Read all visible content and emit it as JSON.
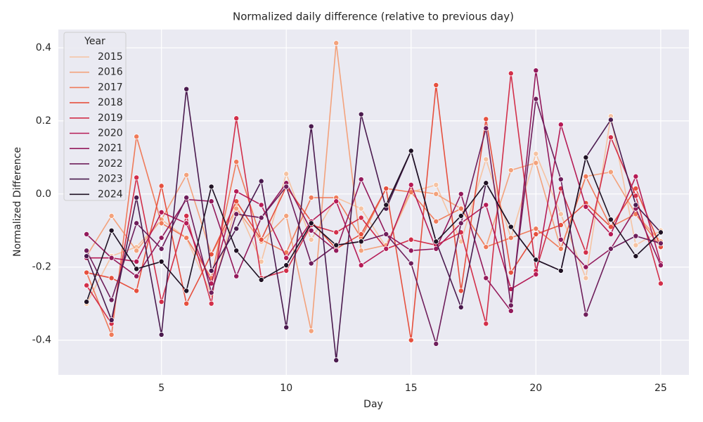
{
  "chart_data": {
    "type": "line",
    "title": "Normalized daily difference (relative to previous day)",
    "xlabel": "Day",
    "ylabel": "Normalized Difference",
    "legend_title": "Year",
    "legend": "upper left",
    "grid": true,
    "x": [
      2,
      3,
      4,
      5,
      6,
      7,
      8,
      9,
      10,
      11,
      12,
      13,
      14,
      15,
      16,
      17,
      18,
      19,
      20,
      21,
      22,
      23,
      24,
      25
    ],
    "xlim": [
      0.87,
      26.13
    ],
    "xticks": [
      5,
      10,
      15,
      20,
      25
    ],
    "ylim": [
      -0.495,
      0.45
    ],
    "yticks": [
      -0.4,
      -0.2,
      {
        "value": 0,
        "label": "0.0"
      },
      0.2,
      0.4
    ],
    "series": [
      {
        "name": "2015",
        "color": "#f6c3a2",
        "values": [
          -0.3,
          -0.17,
          -0.145,
          -0.07,
          -0.12,
          -0.275,
          -0.03,
          -0.185,
          0.055,
          -0.125,
          -0.01,
          -0.04,
          -0.145,
          0.005,
          0.025,
          -0.13,
          0.095,
          -0.12,
          0.11,
          -0.055,
          -0.23,
          0.213,
          -0.14,
          -0.1
        ]
      },
      {
        "name": "2016",
        "color": "#f3a27c",
        "values": [
          -0.17,
          -0.06,
          -0.155,
          -0.07,
          0.052,
          -0.165,
          -0.04,
          -0.13,
          -0.06,
          -0.375,
          0.413,
          -0.155,
          -0.14,
          0.01,
          0.0,
          -0.04,
          -0.145,
          0.065,
          0.085,
          -0.15,
          0.048,
          0.06,
          -0.055,
          -0.13
        ]
      },
      {
        "name": "2017",
        "color": "#ef7b5a",
        "values": [
          -0.215,
          -0.385,
          0.157,
          -0.08,
          -0.12,
          -0.23,
          0.088,
          -0.125,
          -0.16,
          -0.01,
          -0.01,
          -0.12,
          0.015,
          0.005,
          -0.075,
          -0.04,
          -0.145,
          -0.12,
          -0.095,
          -0.15,
          0.048,
          -0.09,
          -0.055,
          -0.145
        ]
      },
      {
        "name": "2018",
        "color": "#e6503e",
        "values": [
          -0.215,
          -0.23,
          -0.265,
          0.022,
          -0.3,
          -0.165,
          -0.02,
          -0.125,
          0.02,
          -0.075,
          -0.15,
          -0.11,
          0.015,
          -0.4,
          0.298,
          -0.265,
          0.205,
          -0.215,
          -0.11,
          -0.085,
          -0.025,
          -0.09,
          0.015,
          -0.145
        ]
      },
      {
        "name": "2019",
        "color": "#d22f4a",
        "values": [
          -0.25,
          -0.355,
          0.045,
          -0.295,
          -0.06,
          -0.3,
          0.207,
          -0.23,
          -0.21,
          -0.085,
          -0.105,
          -0.065,
          -0.15,
          -0.125,
          -0.14,
          -0.105,
          -0.355,
          0.33,
          -0.21,
          0.015,
          -0.16,
          0.155,
          -0.005,
          -0.245
        ]
      },
      {
        "name": "2020",
        "color": "#b51b56",
        "values": [
          -0.175,
          -0.175,
          -0.185,
          -0.05,
          -0.08,
          -0.245,
          0.007,
          -0.03,
          -0.175,
          -0.075,
          -0.02,
          -0.195,
          -0.15,
          0.025,
          -0.15,
          -0.08,
          -0.03,
          -0.26,
          -0.22,
          0.19,
          -0.035,
          -0.11,
          0.048,
          -0.19
        ]
      },
      {
        "name": "2021",
        "color": "#931a5c",
        "values": [
          -0.11,
          -0.175,
          -0.225,
          -0.12,
          -0.015,
          -0.02,
          -0.225,
          -0.065,
          0.03,
          -0.1,
          -0.155,
          0.04,
          -0.11,
          -0.155,
          -0.15,
          0.0,
          -0.23,
          -0.32,
          0.338,
          -0.125,
          -0.2,
          -0.15,
          -0.04,
          -0.195
        ]
      },
      {
        "name": "2022",
        "color": "#6e1e5b",
        "values": [
          -0.155,
          -0.29,
          -0.08,
          -0.15,
          -0.01,
          -0.27,
          -0.055,
          -0.065,
          0.02,
          -0.19,
          -0.14,
          -0.13,
          -0.11,
          -0.19,
          -0.41,
          -0.08,
          0.18,
          -0.305,
          0.26,
          0.04,
          -0.33,
          -0.15,
          -0.115,
          -0.135
        ]
      },
      {
        "name": "2023",
        "color": "#4a1a4e",
        "values": [
          -0.17,
          -0.345,
          -0.01,
          -0.385,
          0.287,
          -0.21,
          -0.095,
          0.035,
          -0.365,
          0.185,
          -0.455,
          0.218,
          -0.04,
          0.118,
          -0.13,
          -0.31,
          0.03,
          -0.09,
          -0.18,
          -0.21,
          0.1,
          0.203,
          -0.03,
          -0.105
        ]
      },
      {
        "name": "2024",
        "color": "#1f1224",
        "values": [
          -0.295,
          -0.1,
          -0.205,
          -0.185,
          -0.265,
          0.02,
          -0.155,
          -0.235,
          -0.195,
          -0.08,
          -0.14,
          -0.13,
          -0.03,
          0.118,
          -0.13,
          -0.06,
          0.03,
          -0.09,
          -0.18,
          -0.21,
          0.1,
          -0.07,
          -0.17,
          -0.105
        ]
      }
    ]
  }
}
